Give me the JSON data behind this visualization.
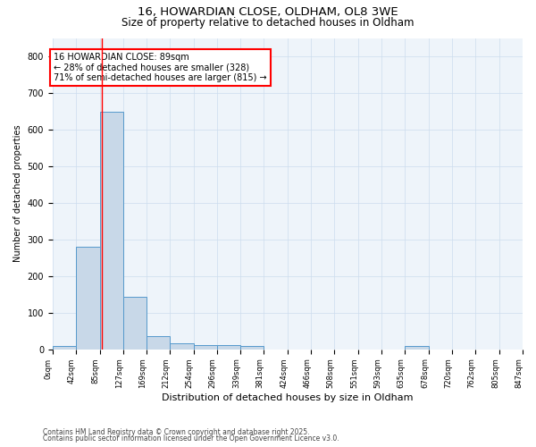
{
  "title1": "16, HOWARDIAN CLOSE, OLDHAM, OL8 3WE",
  "title2": "Size of property relative to detached houses in Oldham",
  "xlabel": "Distribution of detached houses by size in Oldham",
  "ylabel": "Number of detached properties",
  "bar_edges": [
    0,
    42,
    85,
    127,
    169,
    212,
    254,
    296,
    339,
    381,
    424,
    466,
    508,
    551,
    593,
    635,
    678,
    720,
    762,
    805,
    847
  ],
  "bar_heights": [
    8,
    280,
    648,
    143,
    37,
    17,
    12,
    12,
    9,
    0,
    0,
    0,
    0,
    0,
    0,
    8,
    0,
    0,
    0,
    0
  ],
  "bar_color": "#c8d8e8",
  "bar_edge_color": "#5599cc",
  "red_line_x": 89,
  "annotation_text": "16 HOWARDIAN CLOSE: 89sqm\n← 28% of detached houses are smaller (328)\n71% of semi-detached houses are larger (815) →",
  "annotation_box_color": "#ff0000",
  "annotation_text_color": "#000000",
  "ylim": [
    0,
    850
  ],
  "yticks": [
    0,
    100,
    200,
    300,
    400,
    500,
    600,
    700,
    800
  ],
  "grid_color": "#ccddee",
  "background_color": "#eef4fa",
  "footer1": "Contains HM Land Registry data © Crown copyright and database right 2025.",
  "footer2": "Contains public sector information licensed under the Open Government Licence v3.0."
}
